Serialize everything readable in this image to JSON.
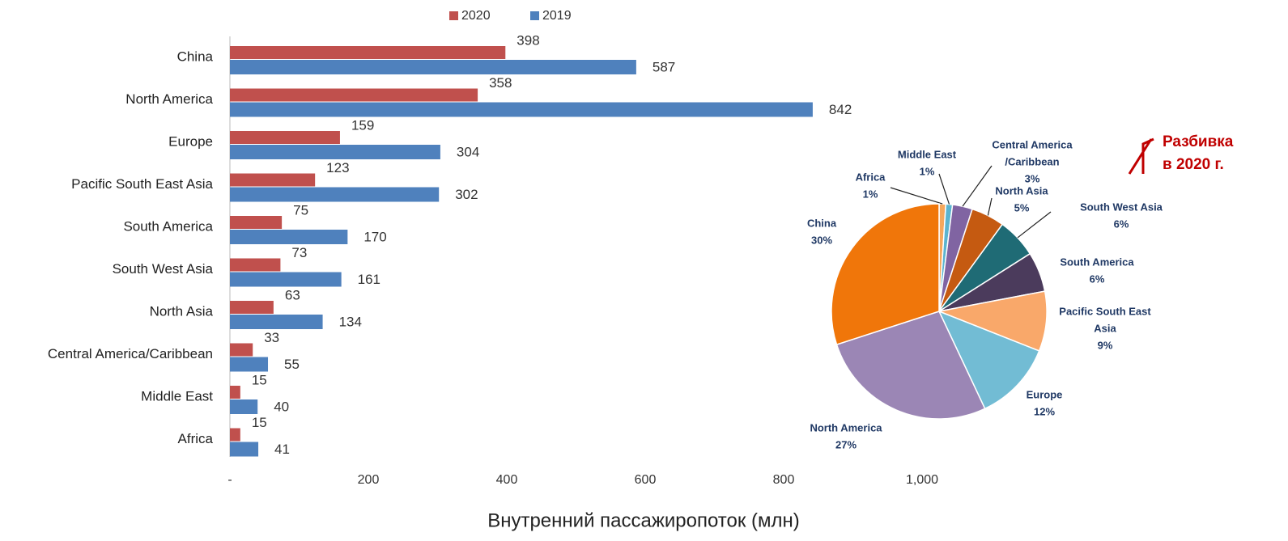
{
  "chart_data": [
    {
      "type": "bar",
      "orientation": "horizontal",
      "categories": [
        "China",
        "North America",
        "Europe",
        "Pacific South East Asia",
        "South America",
        "South West Asia",
        "North Asia",
        "Central America/Caribbean",
        "Middle East",
        "Africa"
      ],
      "series": [
        {
          "name": "2020",
          "color": "#c0504d",
          "values": [
            398,
            358,
            159,
            123,
            75,
            73,
            63,
            33,
            15,
            15
          ]
        },
        {
          "name": "2019",
          "color": "#4f81bd",
          "values": [
            587,
            842,
            304,
            302,
            170,
            161,
            134,
            55,
            40,
            41
          ]
        }
      ],
      "xlim": [
        0,
        1000
      ],
      "xticks": [
        {
          "value": 0,
          "label": "-"
        },
        200,
        400,
        600,
        800,
        {
          "value": 1000,
          "label": "1,000"
        }
      ],
      "xlabel": "Внутренний пассажиропоток (млн)",
      "legend": "top"
    },
    {
      "type": "pie",
      "annotation": [
        "Разбивка",
        "в 2020 г."
      ],
      "categories": [
        [
          "Africa"
        ],
        [
          "Middle East"
        ],
        [
          "Central America",
          "/Caribbean"
        ],
        [
          "North Asia"
        ],
        [
          "South West Asia"
        ],
        [
          "South America"
        ],
        [
          "Pacific South East",
          "Asia"
        ],
        [
          "Europe"
        ],
        [
          "North America"
        ],
        [
          "China"
        ]
      ],
      "values": [
        1,
        1,
        3,
        5,
        6,
        6,
        9,
        12,
        27,
        30
      ],
      "value_labels": [
        "1%",
        "1%",
        "3%",
        "5%",
        "6%",
        "6%",
        "9%",
        "12%",
        "27%",
        "30%"
      ],
      "colors": [
        "#f5a75c",
        "#5bb4cf",
        "#8064a2",
        "#c55a11",
        "#1f6b75",
        "#4b3b5c",
        "#f9a86a",
        "#72bcd4",
        "#9b86b5",
        "#f0760a"
      ]
    }
  ]
}
